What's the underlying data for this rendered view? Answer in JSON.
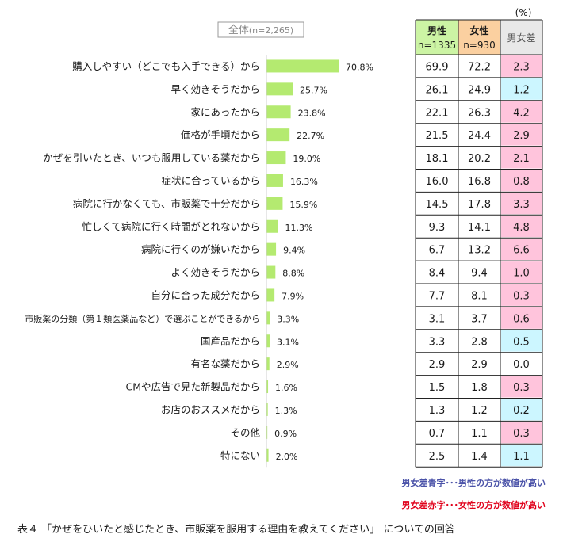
{
  "figure": {
    "overall_label": "全体",
    "overall_n": "(n=2,265)",
    "unit": "(%)",
    "table_headers": {
      "male": "男性",
      "male_n": "n=1335",
      "female": "女性",
      "female_n": "n=930",
      "diff": "男女差"
    },
    "note_blue": "男女差青字･･･男性の方が数値が高い",
    "note_red": "男女差赤字･･･女性の方が数値が高い",
    "caption": "表４ 「かぜをひいたと感じたとき、市販薬を服用する理由を教えてください」 についての回答",
    "colors": {
      "bar": "#b4ea70",
      "male_header_bg": "#ccf4a4",
      "female_header_bg": "#fbd0a0",
      "diff_header_bg": "#e8e8e8",
      "blue_bg": "#ccf6ff",
      "blue_text": "#1f24c8",
      "red_bg": "#ffc4dc",
      "red_text": "#e0004a",
      "note_blue": "#4a52a8",
      "note_red": "#e0001a"
    }
  },
  "chart_data": {
    "type": "bar",
    "orientation": "horizontal",
    "xlim": [
      0,
      100
    ],
    "categories": [
      "購入しやすい（どこでも入手できる）から",
      "早く効きそうだから",
      "家にあったから",
      "価格が手頃だから",
      "かぜを引いたとき、いつも服用している薬だから",
      "症状に合っているから",
      "病院に行かなくても、市販薬で十分だから",
      "忙しくて病院に行く時間がとれないから",
      "病院に行くのが嫌いだから",
      "よく効きそうだから",
      "自分に合った成分だから",
      "市販薬の分類（第１類医薬品など）で選ぶことができるから",
      "国産品だから",
      "有名な薬だから",
      "CMや広告で見た新製品だから",
      "お店のおススメだから",
      "その他",
      "特にない"
    ],
    "values": [
      70.8,
      25.7,
      23.8,
      22.7,
      19.0,
      16.3,
      15.9,
      11.3,
      9.4,
      8.8,
      7.9,
      3.3,
      3.1,
      2.9,
      1.6,
      1.3,
      0.9,
      2.0
    ],
    "value_labels": [
      "70.8%",
      "25.7%",
      "23.8%",
      "22.7%",
      "19.0%",
      "16.3%",
      "15.9%",
      "11.3%",
      "9.4%",
      "8.8%",
      "7.9%",
      "3.3%",
      "3.1%",
      "2.9%",
      "1.6%",
      "1.3%",
      "0.9%",
      "2.0%"
    ],
    "table": {
      "male": [
        "69.9",
        "26.1",
        "22.1",
        "21.5",
        "18.1",
        "16.0",
        "14.5",
        "9.3",
        "6.7",
        "8.4",
        "7.7",
        "3.1",
        "3.3",
        "2.9",
        "1.5",
        "1.3",
        "0.7",
        "2.5"
      ],
      "female": [
        "72.2",
        "24.9",
        "26.3",
        "24.4",
        "20.2",
        "16.8",
        "17.8",
        "14.1",
        "13.2",
        "9.4",
        "8.1",
        "3.7",
        "2.8",
        "2.9",
        "1.8",
        "1.2",
        "1.1",
        "1.4"
      ],
      "diff": [
        "2.3",
        "1.2",
        "4.2",
        "2.9",
        "2.1",
        "0.8",
        "3.3",
        "4.8",
        "6.6",
        "1.0",
        "0.3",
        "0.6",
        "0.5",
        "0.0",
        "0.3",
        "0.2",
        "0.3",
        "1.1"
      ],
      "diff_color": [
        "red",
        "blue",
        "red",
        "red",
        "red",
        "red",
        "red",
        "red",
        "red",
        "red",
        "red",
        "red",
        "blue",
        "none",
        "red",
        "blue",
        "red",
        "blue"
      ]
    }
  }
}
